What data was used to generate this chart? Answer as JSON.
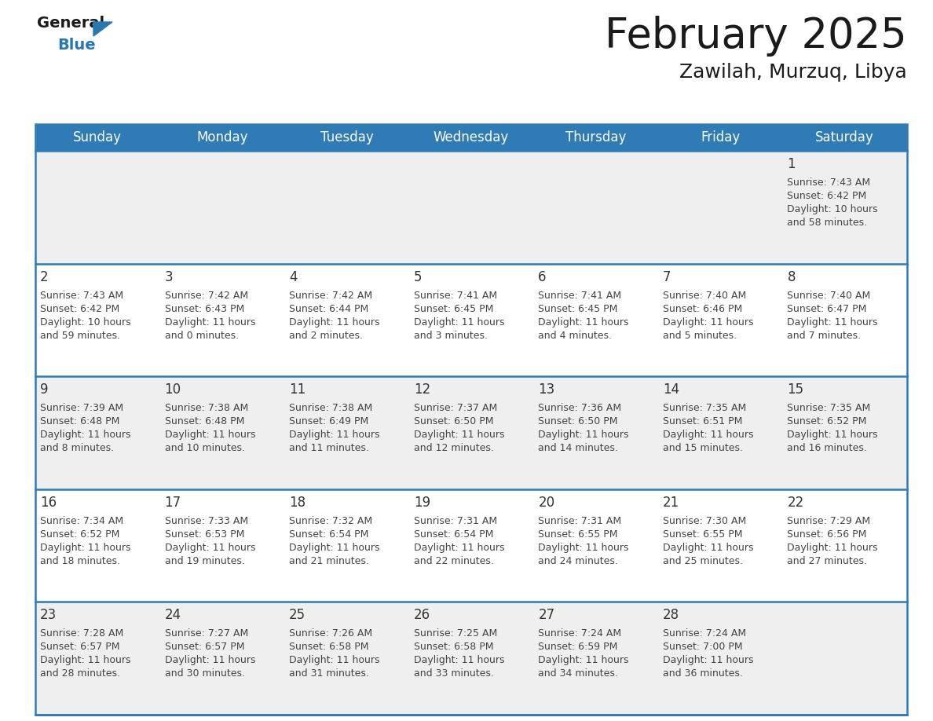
{
  "title": "February 2025",
  "subtitle": "Zawilah, Murzuq, Libya",
  "header_bg_color": "#2E7BB5",
  "header_text_color": "#FFFFFF",
  "days_of_week": [
    "Sunday",
    "Monday",
    "Tuesday",
    "Wednesday",
    "Thursday",
    "Friday",
    "Saturday"
  ],
  "row_bg_light": "#EFEFEF",
  "row_bg_white": "#FFFFFF",
  "divider_color": "#2E7BB5",
  "text_color": "#444444",
  "day_num_color": "#333333",
  "logo_general_color": "#1A1A1A",
  "logo_blue_color": "#2878B0",
  "calendar_data": [
    [
      null,
      null,
      null,
      null,
      null,
      null,
      {
        "day": 1,
        "sunrise": "7:43 AM",
        "sunset": "6:42 PM",
        "daylight_h": "10 hours",
        "daylight_m": "and 58 minutes."
      }
    ],
    [
      {
        "day": 2,
        "sunrise": "7:43 AM",
        "sunset": "6:42 PM",
        "daylight_h": "10 hours",
        "daylight_m": "and 59 minutes."
      },
      {
        "day": 3,
        "sunrise": "7:42 AM",
        "sunset": "6:43 PM",
        "daylight_h": "11 hours",
        "daylight_m": "and 0 minutes."
      },
      {
        "day": 4,
        "sunrise": "7:42 AM",
        "sunset": "6:44 PM",
        "daylight_h": "11 hours",
        "daylight_m": "and 2 minutes."
      },
      {
        "day": 5,
        "sunrise": "7:41 AM",
        "sunset": "6:45 PM",
        "daylight_h": "11 hours",
        "daylight_m": "and 3 minutes."
      },
      {
        "day": 6,
        "sunrise": "7:41 AM",
        "sunset": "6:45 PM",
        "daylight_h": "11 hours",
        "daylight_m": "and 4 minutes."
      },
      {
        "day": 7,
        "sunrise": "7:40 AM",
        "sunset": "6:46 PM",
        "daylight_h": "11 hours",
        "daylight_m": "and 5 minutes."
      },
      {
        "day": 8,
        "sunrise": "7:40 AM",
        "sunset": "6:47 PM",
        "daylight_h": "11 hours",
        "daylight_m": "and 7 minutes."
      }
    ],
    [
      {
        "day": 9,
        "sunrise": "7:39 AM",
        "sunset": "6:48 PM",
        "daylight_h": "11 hours",
        "daylight_m": "and 8 minutes."
      },
      {
        "day": 10,
        "sunrise": "7:38 AM",
        "sunset": "6:48 PM",
        "daylight_h": "11 hours",
        "daylight_m": "and 10 minutes."
      },
      {
        "day": 11,
        "sunrise": "7:38 AM",
        "sunset": "6:49 PM",
        "daylight_h": "11 hours",
        "daylight_m": "and 11 minutes."
      },
      {
        "day": 12,
        "sunrise": "7:37 AM",
        "sunset": "6:50 PM",
        "daylight_h": "11 hours",
        "daylight_m": "and 12 minutes."
      },
      {
        "day": 13,
        "sunrise": "7:36 AM",
        "sunset": "6:50 PM",
        "daylight_h": "11 hours",
        "daylight_m": "and 14 minutes."
      },
      {
        "day": 14,
        "sunrise": "7:35 AM",
        "sunset": "6:51 PM",
        "daylight_h": "11 hours",
        "daylight_m": "and 15 minutes."
      },
      {
        "day": 15,
        "sunrise": "7:35 AM",
        "sunset": "6:52 PM",
        "daylight_h": "11 hours",
        "daylight_m": "and 16 minutes."
      }
    ],
    [
      {
        "day": 16,
        "sunrise": "7:34 AM",
        "sunset": "6:52 PM",
        "daylight_h": "11 hours",
        "daylight_m": "and 18 minutes."
      },
      {
        "day": 17,
        "sunrise": "7:33 AM",
        "sunset": "6:53 PM",
        "daylight_h": "11 hours",
        "daylight_m": "and 19 minutes."
      },
      {
        "day": 18,
        "sunrise": "7:32 AM",
        "sunset": "6:54 PM",
        "daylight_h": "11 hours",
        "daylight_m": "and 21 minutes."
      },
      {
        "day": 19,
        "sunrise": "7:31 AM",
        "sunset": "6:54 PM",
        "daylight_h": "11 hours",
        "daylight_m": "and 22 minutes."
      },
      {
        "day": 20,
        "sunrise": "7:31 AM",
        "sunset": "6:55 PM",
        "daylight_h": "11 hours",
        "daylight_m": "and 24 minutes."
      },
      {
        "day": 21,
        "sunrise": "7:30 AM",
        "sunset": "6:55 PM",
        "daylight_h": "11 hours",
        "daylight_m": "and 25 minutes."
      },
      {
        "day": 22,
        "sunrise": "7:29 AM",
        "sunset": "6:56 PM",
        "daylight_h": "11 hours",
        "daylight_m": "and 27 minutes."
      }
    ],
    [
      {
        "day": 23,
        "sunrise": "7:28 AM",
        "sunset": "6:57 PM",
        "daylight_h": "11 hours",
        "daylight_m": "and 28 minutes."
      },
      {
        "day": 24,
        "sunrise": "7:27 AM",
        "sunset": "6:57 PM",
        "daylight_h": "11 hours",
        "daylight_m": "and 30 minutes."
      },
      {
        "day": 25,
        "sunrise": "7:26 AM",
        "sunset": "6:58 PM",
        "daylight_h": "11 hours",
        "daylight_m": "and 31 minutes."
      },
      {
        "day": 26,
        "sunrise": "7:25 AM",
        "sunset": "6:58 PM",
        "daylight_h": "11 hours",
        "daylight_m": "and 33 minutes."
      },
      {
        "day": 27,
        "sunrise": "7:24 AM",
        "sunset": "6:59 PM",
        "daylight_h": "11 hours",
        "daylight_m": "and 34 minutes."
      },
      {
        "day": 28,
        "sunrise": "7:24 AM",
        "sunset": "7:00 PM",
        "daylight_h": "11 hours",
        "daylight_m": "and 36 minutes."
      },
      null
    ]
  ],
  "row_bg_sequence": [
    "#EFEFEF",
    "#FFFFFF",
    "#EFEFEF",
    "#FFFFFF",
    "#EFEFEF"
  ]
}
